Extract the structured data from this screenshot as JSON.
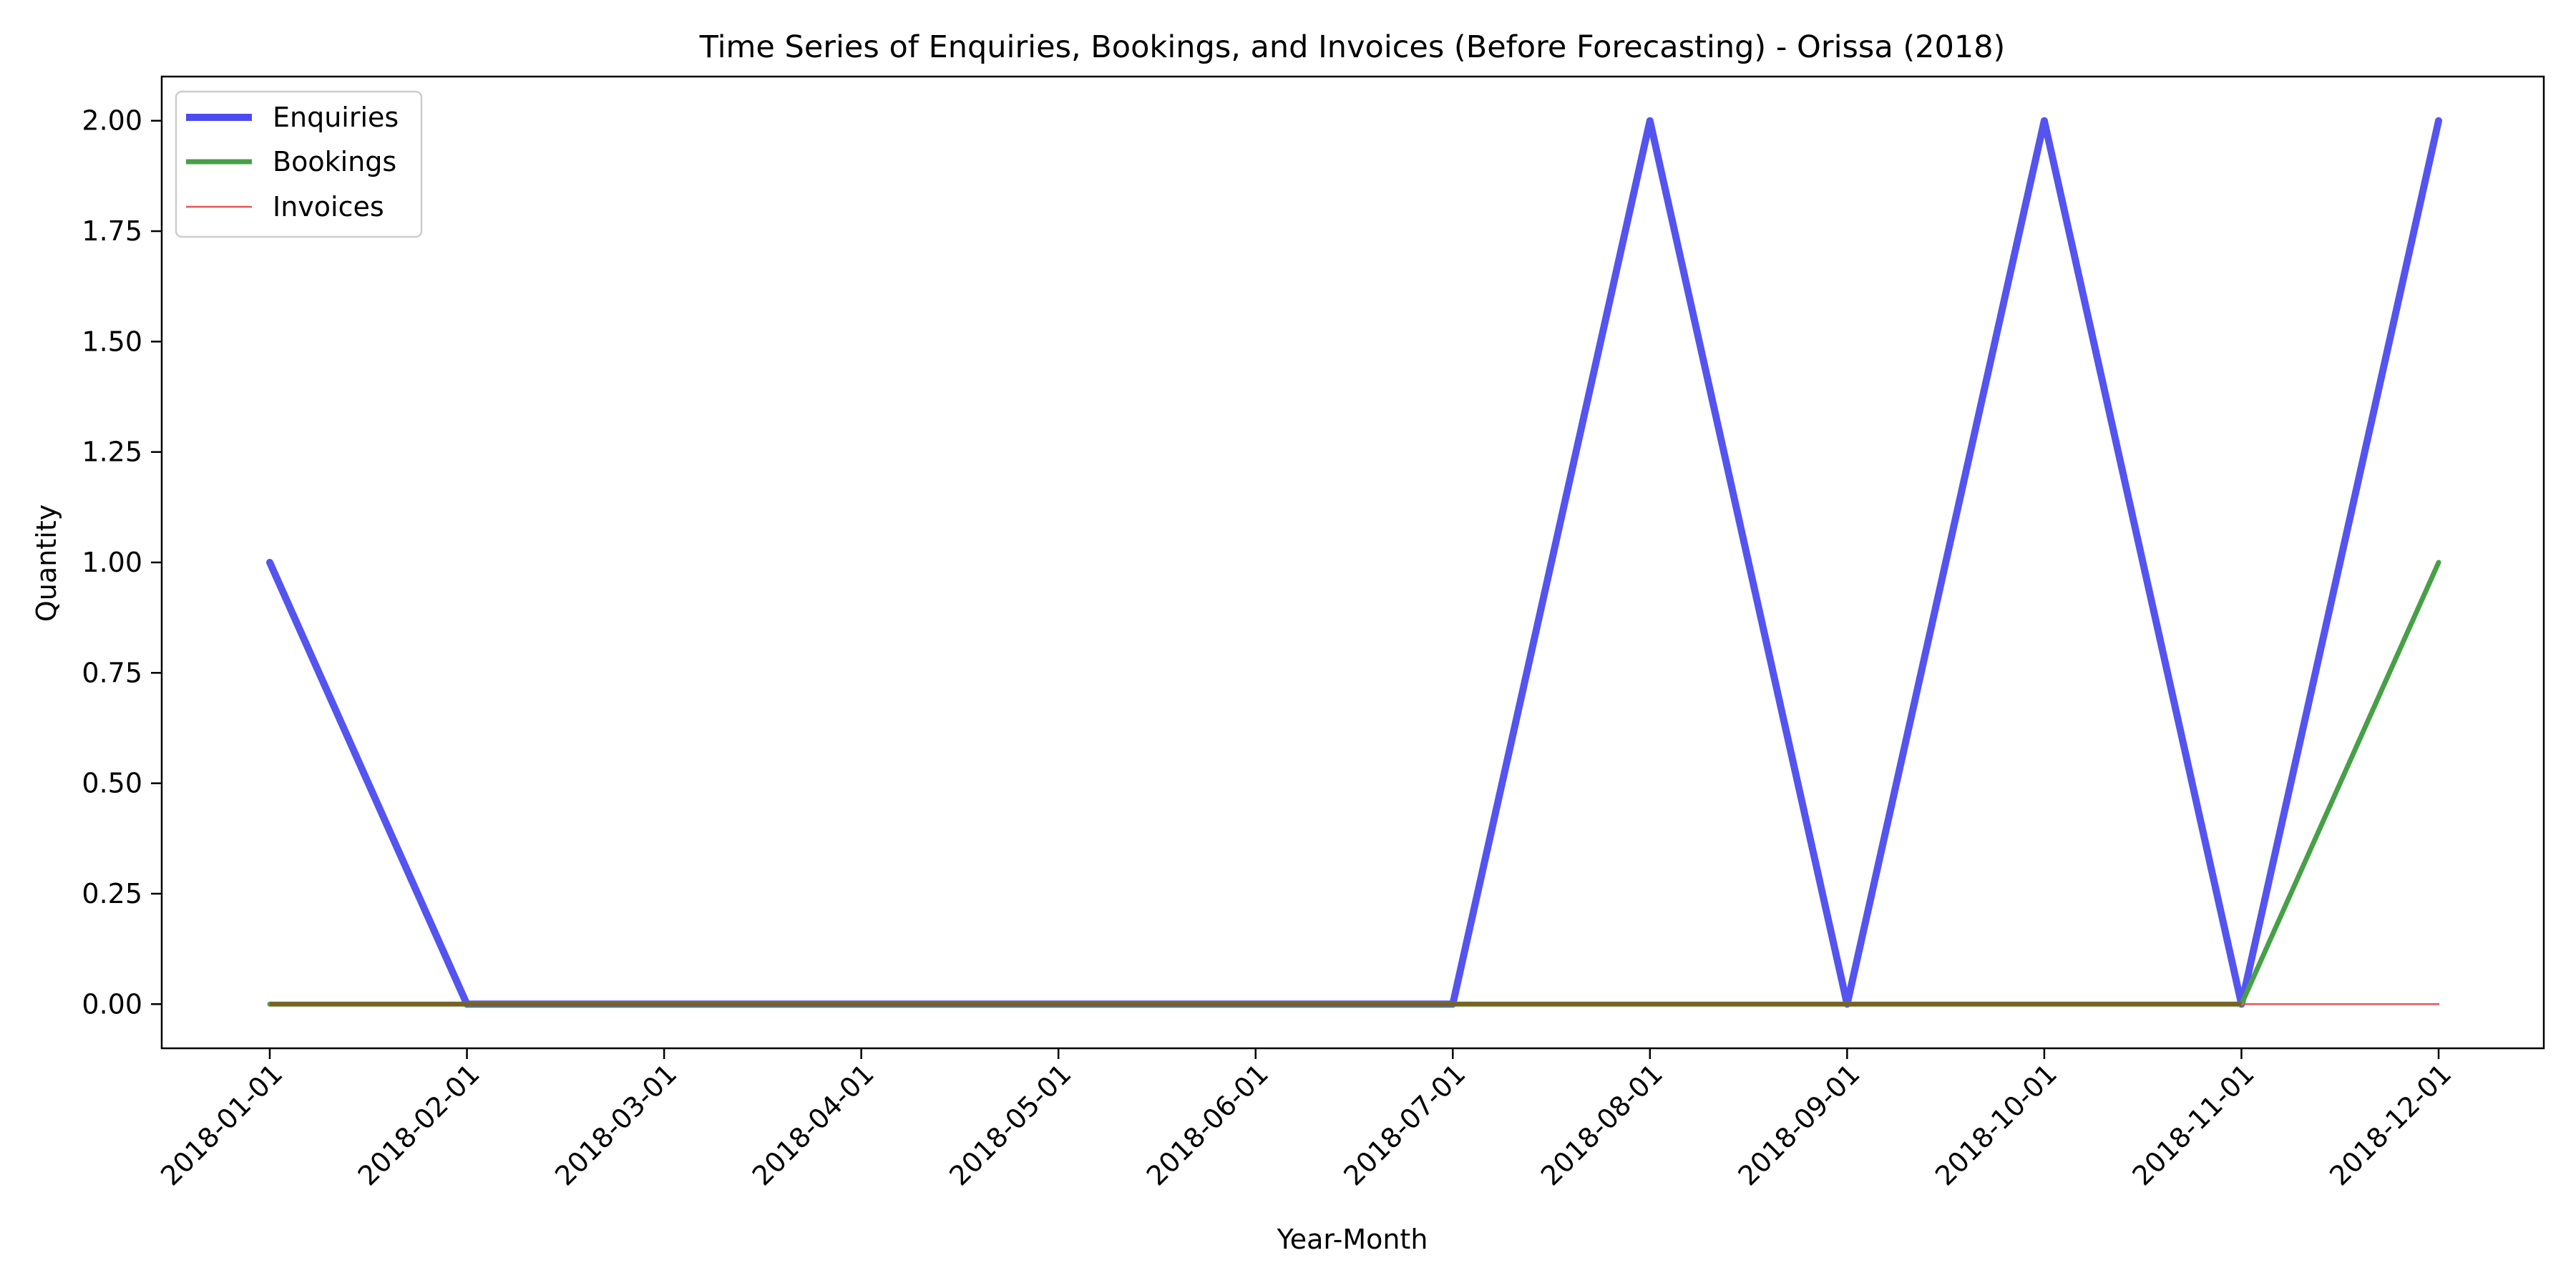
{
  "chart_data": {
    "type": "line",
    "title": "Time Series of Enquiries, Bookings, and Invoices (Before Forecasting) - Orissa (2018)",
    "xlabel": "Year-Month",
    "ylabel": "Quantity",
    "x": [
      "2018-01-01",
      "2018-02-01",
      "2018-03-01",
      "2018-04-01",
      "2018-05-01",
      "2018-06-01",
      "2018-07-01",
      "2018-08-01",
      "2018-09-01",
      "2018-10-01",
      "2018-11-01",
      "2018-12-01"
    ],
    "yticks": [
      "0.00",
      "0.25",
      "0.50",
      "0.75",
      "1.00",
      "1.25",
      "1.50",
      "1.75",
      "2.00"
    ],
    "ylim": [
      -0.1,
      2.1
    ],
    "grid": false,
    "legend_position": "top-left",
    "series": [
      {
        "name": "Enquiries",
        "color": "#4b4bf0",
        "values": [
          1,
          0,
          0,
          0,
          0,
          0,
          0,
          2,
          0,
          2,
          0,
          2
        ]
      },
      {
        "name": "Bookings",
        "color": "#47a047",
        "values": [
          0,
          0,
          0,
          0,
          0,
          0,
          0,
          0,
          0,
          0,
          0,
          1
        ]
      },
      {
        "name": "Invoices",
        "color": "#e85555",
        "values": [
          0,
          0,
          0,
          0,
          0,
          0,
          0,
          0,
          0,
          0,
          0,
          0
        ]
      }
    ]
  }
}
